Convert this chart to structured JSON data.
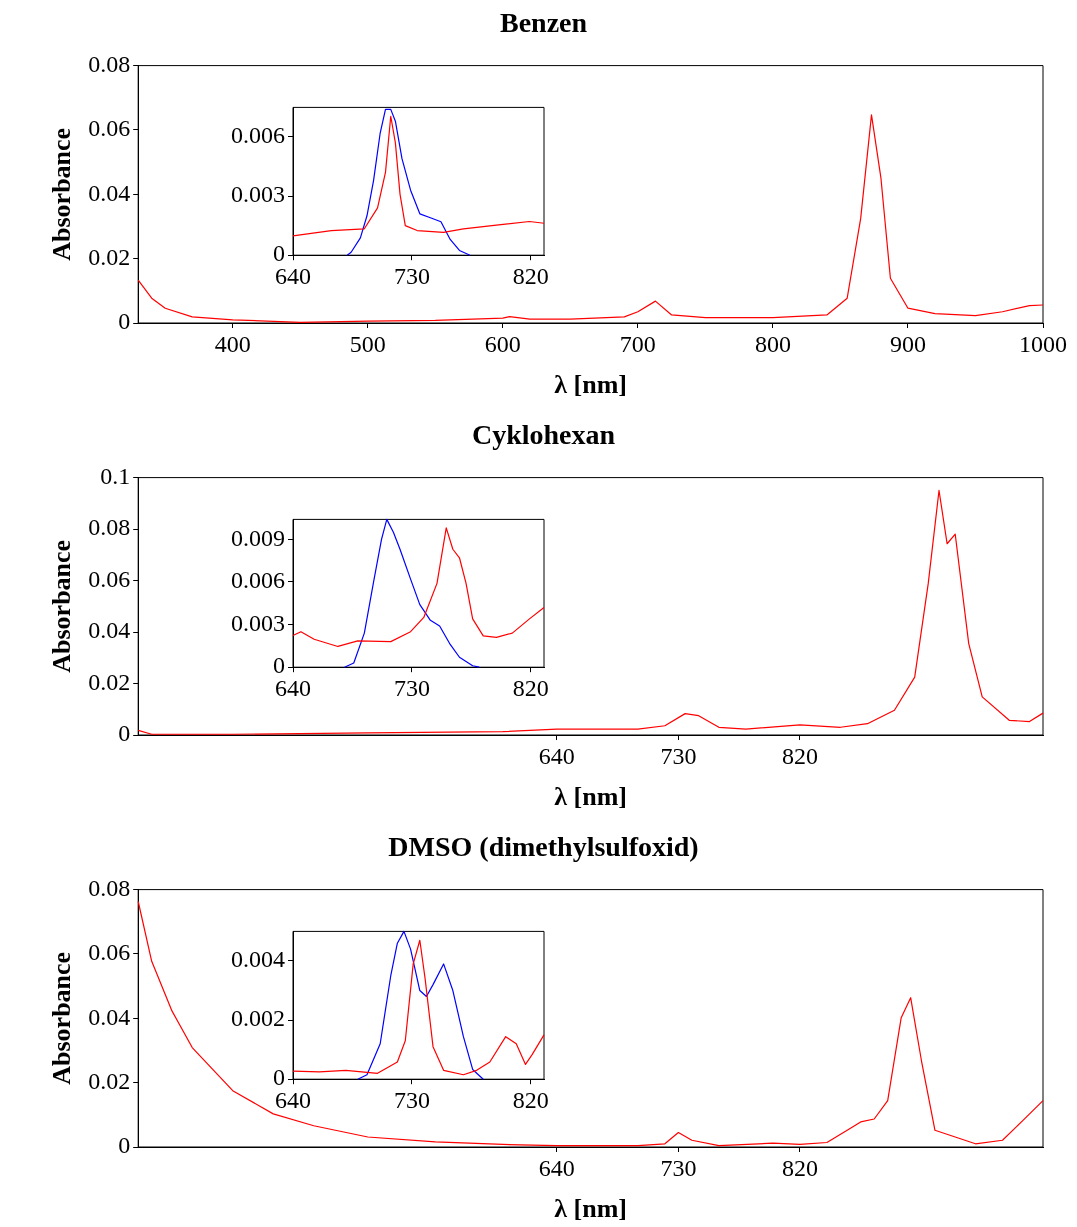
{
  "chart_data": [
    {
      "type": "line",
      "title": "Benzen",
      "xlabel": "λ [nm]",
      "ylabel": "Absorbance",
      "xlim": [
        330,
        1000
      ],
      "ylim": [
        0,
        0.08
      ],
      "xticks": [
        400,
        500,
        600,
        700,
        800,
        900,
        1000
      ],
      "yticks": [
        0,
        0.02,
        0.04,
        0.06,
        0.08
      ],
      "grid": false,
      "legend": false,
      "marker": "none",
      "line_style": "solid",
      "series": [
        {
          "color": "#ff0000",
          "x": [
            330,
            340,
            350,
            370,
            400,
            450,
            500,
            550,
            600,
            605,
            620,
            650,
            690,
            700,
            713,
            725,
            750,
            800,
            840,
            855,
            865,
            873,
            880,
            887,
            900,
            920,
            950,
            970,
            990,
            1000
          ],
          "values": [
            0.0133,
            0.0077,
            0.0046,
            0.0019,
            0.001,
            0.0002,
            0.0006,
            0.0008,
            0.0015,
            0.002,
            0.0012,
            0.0012,
            0.0019,
            0.0035,
            0.0068,
            0.0025,
            0.0017,
            0.0017,
            0.0025,
            0.0077,
            0.0325,
            0.0647,
            0.045,
            0.0139,
            0.0046,
            0.0029,
            0.0023,
            0.0035,
            0.0054,
            0.0056
          ]
        }
      ]
    },
    {
      "type": "line",
      "xlim": [
        640,
        830
      ],
      "ylim": [
        0,
        0.0075
      ],
      "xticks": [
        640,
        730,
        820
      ],
      "yticks": [
        0,
        0.003,
        0.006
      ],
      "grid": false,
      "legend": false,
      "marker": "none",
      "line_style": "solid",
      "series": [
        {
          "color": "#ff0000",
          "x": [
            640,
            669,
            694,
            704,
            710,
            714,
            717.5,
            721,
            725,
            734,
            754,
            769,
            794,
            819,
            830
          ],
          "values": [
            0.00098,
            0.00125,
            0.00134,
            0.0024,
            0.0042,
            0.00705,
            0.0057,
            0.0031,
            0.0015,
            0.00125,
            0.00116,
            0.00134,
            0.00153,
            0.00171,
            0.00162
          ]
        },
        {
          "color": "#0000ff",
          "x": [
            681,
            684,
            691,
            696,
            701,
            706,
            710,
            714,
            717.5,
            722.5,
            729,
            736,
            744,
            752,
            759,
            766,
            774
          ],
          "values": [
            0,
            0.00015,
            0.00088,
            0.002,
            0.0038,
            0.0062,
            0.0074,
            0.0074,
            0.0068,
            0.0049,
            0.0033,
            0.0021,
            0.0019,
            0.0017,
            0.0008,
            0.00024,
            0
          ]
        }
      ]
    },
    {
      "type": "line",
      "title": "Cyklohexan",
      "xlabel": "λ [nm]",
      "ylabel": "Absorbance",
      "xlim": [
        330,
        1000
      ],
      "ylim": [
        0,
        0.1
      ],
      "xticks": [
        640,
        730,
        820
      ],
      "yticks": [
        0,
        0.02,
        0.04,
        0.06,
        0.08,
        0.1
      ],
      "grid": false,
      "legend": false,
      "marker": "none",
      "line_style": "solid",
      "series": [
        {
          "color": "#ff0000",
          "x": [
            330,
            340,
            400,
            500,
            600,
            640,
            700,
            720,
            735,
            745,
            760,
            780,
            820,
            850,
            870,
            890,
            905,
            915,
            923,
            929,
            935,
            945,
            955,
            975,
            990,
            1000
          ],
          "values": [
            0.0018,
            0.0003,
            0.0003,
            0.0008,
            0.0013,
            0.0023,
            0.0023,
            0.0036,
            0.0083,
            0.0075,
            0.003,
            0.0023,
            0.0039,
            0.003,
            0.0044,
            0.0096,
            0.0225,
            0.0588,
            0.095,
            0.0743,
            0.078,
            0.0355,
            0.0148,
            0.0057,
            0.0052,
            0.0085
          ]
        }
      ]
    },
    {
      "type": "line",
      "xlim": [
        640,
        830
      ],
      "ylim": [
        0,
        0.0104
      ],
      "xticks": [
        640,
        730,
        820
      ],
      "yticks": [
        0,
        0.003,
        0.006,
        0.009
      ],
      "grid": false,
      "legend": false,
      "marker": "none",
      "line_style": "solid",
      "series": [
        {
          "color": "#ff0000",
          "x": [
            640,
            646,
            656,
            674,
            689,
            714,
            729,
            739,
            749,
            756,
            761,
            766,
            771,
            776,
            784,
            794,
            806,
            819,
            830
          ],
          "values": [
            0.00223,
            0.0025,
            0.00197,
            0.00146,
            0.00185,
            0.0018,
            0.0025,
            0.0035,
            0.0059,
            0.0098,
            0.0083,
            0.0077,
            0.0059,
            0.0034,
            0.0022,
            0.0021,
            0.0024,
            0.0034,
            0.0042
          ]
        },
        {
          "color": "#0000ff",
          "x": [
            679,
            686,
            694,
            701,
            707,
            711,
            716,
            721,
            729,
            736,
            744,
            751,
            759,
            766,
            776,
            781
          ],
          "values": [
            0,
            0.0003,
            0.0024,
            0.006,
            0.009,
            0.0104,
            0.0095,
            0.0083,
            0.0062,
            0.0044,
            0.0033,
            0.0029,
            0.0016,
            0.0007,
            0.0001,
            0
          ]
        }
      ]
    },
    {
      "type": "line",
      "title": "DMSO (dimethylsulfoxid)",
      "xlabel": "λ [nm]",
      "ylabel": "Absorbance",
      "xlim": [
        330,
        1000
      ],
      "ylim": [
        0,
        0.08
      ],
      "xticks": [
        640,
        730,
        820
      ],
      "yticks": [
        0,
        0.02,
        0.04,
        0.06,
        0.08
      ],
      "grid": false,
      "legend": false,
      "marker": "none",
      "line_style": "solid",
      "series": [
        {
          "color": "#ff0000",
          "x": [
            330,
            340,
            355,
            370,
            400,
            430,
            460,
            500,
            550,
            600,
            640,
            700,
            720,
            730,
            740,
            760,
            800,
            820,
            840,
            855,
            865,
            875,
            885,
            895,
            902,
            910,
            920,
            950,
            970,
            985,
            1000
          ],
          "values": [
            0.0763,
            0.0577,
            0.0423,
            0.0309,
            0.0175,
            0.0103,
            0.0066,
            0.0031,
            0.0016,
            0.0008,
            0.0004,
            0.0004,
            0.001,
            0.0045,
            0.0021,
            0.0004,
            0.0012,
            0.0008,
            0.0014,
            0.0052,
            0.0078,
            0.0087,
            0.0144,
            0.0402,
            0.0464,
            0.0268,
            0.0052,
            0.001,
            0.0021,
            0.0082,
            0.0144
          ]
        }
      ]
    },
    {
      "type": "line",
      "xlim": [
        640,
        830
      ],
      "ylim": [
        0,
        0.005
      ],
      "xticks": [
        640,
        730,
        820
      ],
      "yticks": [
        0,
        0.002,
        0.004
      ],
      "grid": false,
      "legend": false,
      "marker": "none",
      "line_style": "solid",
      "series": [
        {
          "color": "#ff0000",
          "x": [
            640,
            660,
            680,
            704,
            719,
            725,
            731,
            736,
            740,
            746,
            754,
            769,
            779,
            789,
            801,
            809,
            816,
            821,
            830
          ],
          "values": [
            0.00027,
            0.00025,
            0.0003,
            0.0002,
            0.00058,
            0.0013,
            0.0039,
            0.0047,
            0.0034,
            0.0011,
            0.0003,
            0.00015,
            0.0003,
            0.00058,
            0.00144,
            0.0012,
            0.0005,
            0.00083,
            0.0015
          ]
        },
        {
          "color": "#0000ff",
          "x": [
            689,
            696,
            706,
            714,
            719,
            724,
            729,
            736,
            741,
            746,
            754,
            761,
            769,
            776,
            784
          ],
          "values": [
            0,
            0.00015,
            0.0012,
            0.0035,
            0.0046,
            0.005,
            0.0044,
            0.003,
            0.0028,
            0.0032,
            0.0039,
            0.003,
            0.00144,
            0.00033,
            0
          ]
        }
      ]
    }
  ]
}
